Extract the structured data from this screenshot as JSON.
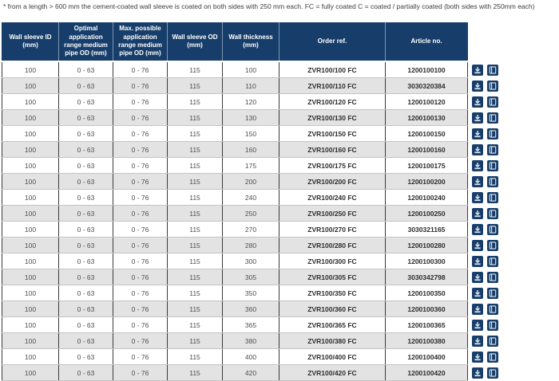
{
  "note": "* from a length > 600 mm the cement-coated wall sleeve is coated on both sides with 250 mm each. FC = fully coated C = coated / partially coated (both sides with 250mm each)",
  "colors": {
    "header_bg": "#173e6b",
    "alt_row_bg": "#e3e3e3",
    "icon_button_bg": "#173e6b"
  },
  "table": {
    "columns": [
      {
        "name": "wall-sleeve-id",
        "label": "Wall sleeve ID (mm)"
      },
      {
        "name": "optimal-range",
        "label": "Optimal application range medium pipe OD (mm)"
      },
      {
        "name": "max-range",
        "label": "Max. possible application range medium pipe OD (mm)"
      },
      {
        "name": "wall-sleeve-od",
        "label": "Wall sleeve OD (mm)"
      },
      {
        "name": "wall-thickness",
        "label": "Wall thickness (mm)"
      },
      {
        "name": "order-ref",
        "label": "Order ref."
      },
      {
        "name": "article-no",
        "label": "Article no."
      }
    ],
    "row_actions": [
      {
        "name": "download-icon"
      },
      {
        "name": "document-icon"
      }
    ],
    "rows": [
      [
        "100",
        "0 - 63",
        "0 - 76",
        "115",
        "100",
        "ZVR100/100 FC",
        "1200100100"
      ],
      [
        "100",
        "0 - 63",
        "0 - 76",
        "115",
        "110",
        "ZVR100/110 FC",
        "3030320384"
      ],
      [
        "100",
        "0 - 63",
        "0 - 76",
        "115",
        "120",
        "ZVR100/120 FC",
        "1200100120"
      ],
      [
        "100",
        "0 - 63",
        "0 - 76",
        "115",
        "130",
        "ZVR100/130 FC",
        "1200100130"
      ],
      [
        "100",
        "0 - 63",
        "0 - 76",
        "115",
        "150",
        "ZVR100/150 FC",
        "1200100150"
      ],
      [
        "100",
        "0 - 63",
        "0 - 76",
        "115",
        "160",
        "ZVR100/160 FC",
        "1200100160"
      ],
      [
        "100",
        "0 - 63",
        "0 - 76",
        "115",
        "175",
        "ZVR100/175 FC",
        "1200100175"
      ],
      [
        "100",
        "0 - 63",
        "0 - 76",
        "115",
        "200",
        "ZVR100/200 FC",
        "1200100200"
      ],
      [
        "100",
        "0 - 63",
        "0 - 76",
        "115",
        "240",
        "ZVR100/240 FC",
        "1200100240"
      ],
      [
        "100",
        "0 - 63",
        "0 - 76",
        "115",
        "250",
        "ZVR100/250 FC",
        "1200100250"
      ],
      [
        "100",
        "0 - 63",
        "0 - 76",
        "115",
        "270",
        "ZVR100/270 FC",
        "3030321165"
      ],
      [
        "100",
        "0 - 63",
        "0 - 76",
        "115",
        "280",
        "ZVR100/280 FC",
        "1200100280"
      ],
      [
        "100",
        "0 - 63",
        "0 - 76",
        "115",
        "300",
        "ZVR100/300 FC",
        "1200100300"
      ],
      [
        "100",
        "0 - 63",
        "0 - 76",
        "115",
        "305",
        "ZVR100/305 FC",
        "3030342798"
      ],
      [
        "100",
        "0 - 63",
        "0 - 76",
        "115",
        "350",
        "ZVR100/350 FC",
        "1200100350"
      ],
      [
        "100",
        "0 - 63",
        "0 - 76",
        "115",
        "360",
        "ZVR100/360 FC",
        "1200100360"
      ],
      [
        "100",
        "0 - 63",
        "0 - 76",
        "115",
        "365",
        "ZVR100/365 FC",
        "1200100365"
      ],
      [
        "100",
        "0 - 63",
        "0 - 76",
        "115",
        "380",
        "ZVR100/380 FC",
        "1200100380"
      ],
      [
        "100",
        "0 - 63",
        "0 - 76",
        "115",
        "400",
        "ZVR100/400 FC",
        "1200100400"
      ],
      [
        "100",
        "0 - 63",
        "0 - 76",
        "115",
        "420",
        "ZVR100/420 FC",
        "1200100420"
      ]
    ]
  }
}
